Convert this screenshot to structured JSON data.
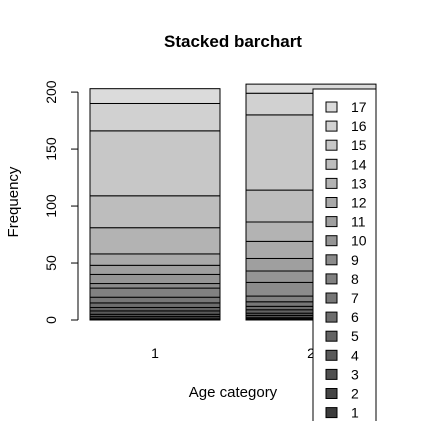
{
  "chart_data": {
    "type": "bar",
    "stacked": true,
    "title": "Stacked barchart",
    "xlabel": "Age category",
    "ylabel": "Frequency",
    "categories": [
      "1",
      "2"
    ],
    "ylim": [
      0,
      215
    ],
    "yticks": [
      0,
      50,
      100,
      150,
      200
    ],
    "legend_position": "right",
    "series": [
      {
        "name": "1",
        "color": "#3b3b3b",
        "values": [
          1,
          1
        ]
      },
      {
        "name": "2",
        "color": "#454545",
        "values": [
          2,
          1
        ]
      },
      {
        "name": "3",
        "color": "#4f4f4f",
        "values": [
          2,
          2
        ]
      },
      {
        "name": "4",
        "color": "#595959",
        "values": [
          3,
          2
        ]
      },
      {
        "name": "5",
        "color": "#636363",
        "values": [
          3,
          3
        ]
      },
      {
        "name": "6",
        "color": "#6d6d6d",
        "values": [
          4,
          3
        ]
      },
      {
        "name": "7",
        "color": "#777777",
        "values": [
          5,
          4
        ]
      },
      {
        "name": "8",
        "color": "#818181",
        "values": [
          8,
          5
        ]
      },
      {
        "name": "9",
        "color": "#8b8b8b",
        "values": [
          4,
          12
        ]
      },
      {
        "name": "10",
        "color": "#959595",
        "values": [
          8,
          10
        ]
      },
      {
        "name": "11",
        "color": "#9f9f9f",
        "values": [
          8,
          11
        ]
      },
      {
        "name": "12",
        "color": "#a9a9a9",
        "values": [
          10,
          15
        ]
      },
      {
        "name": "13",
        "color": "#b3b3b3",
        "values": [
          23,
          17
        ]
      },
      {
        "name": "14",
        "color": "#bdbdbd",
        "values": [
          28,
          28
        ]
      },
      {
        "name": "15",
        "color": "#c7c7c7",
        "values": [
          57,
          66
        ]
      },
      {
        "name": "16",
        "color": "#d1d1d1",
        "values": [
          24,
          19
        ]
      },
      {
        "name": "17",
        "color": "#dbdbdb",
        "values": [
          13,
          8
        ]
      }
    ]
  }
}
